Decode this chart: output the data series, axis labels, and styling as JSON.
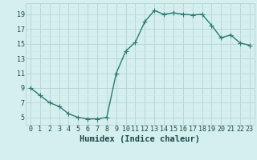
{
  "x": [
    0,
    1,
    2,
    3,
    4,
    5,
    6,
    7,
    8,
    9,
    10,
    11,
    12,
    13,
    14,
    15,
    16,
    17,
    18,
    19,
    20,
    21,
    22,
    23
  ],
  "y": [
    9,
    8,
    7,
    6.5,
    5.5,
    5,
    4.8,
    4.8,
    5,
    11,
    14,
    15.2,
    18,
    19.5,
    19,
    19.2,
    19,
    18.9,
    19,
    17.5,
    15.8,
    16.2,
    15.1,
    14.8
  ],
  "line_color": "#2a7b70",
  "marker_color": "#2a7b70",
  "bg_color": "#d5efee",
  "grid_major_color": "#b8d8d5",
  "grid_minor_color": "#cce8e6",
  "xlabel": "Humidex (Indice chaleur)",
  "xlim": [
    -0.5,
    23.5
  ],
  "ylim": [
    4.0,
    20.5
  ],
  "yticks": [
    5,
    7,
    9,
    11,
    13,
    15,
    17,
    19
  ],
  "xticks": [
    0,
    1,
    2,
    3,
    4,
    5,
    6,
    7,
    8,
    9,
    10,
    11,
    12,
    13,
    14,
    15,
    16,
    17,
    18,
    19,
    20,
    21,
    22,
    23
  ],
  "xtick_labels": [
    "0",
    "1",
    "2",
    "3",
    "4",
    "5",
    "6",
    "7",
    "8",
    "9",
    "10",
    "11",
    "12",
    "13",
    "14",
    "15",
    "16",
    "17",
    "18",
    "19",
    "20",
    "21",
    "22",
    "23"
  ],
  "font_color": "#1a4a48",
  "xlabel_fontsize": 7.5,
  "tick_fontsize": 6.0,
  "linewidth": 1.0,
  "markersize": 2.5
}
